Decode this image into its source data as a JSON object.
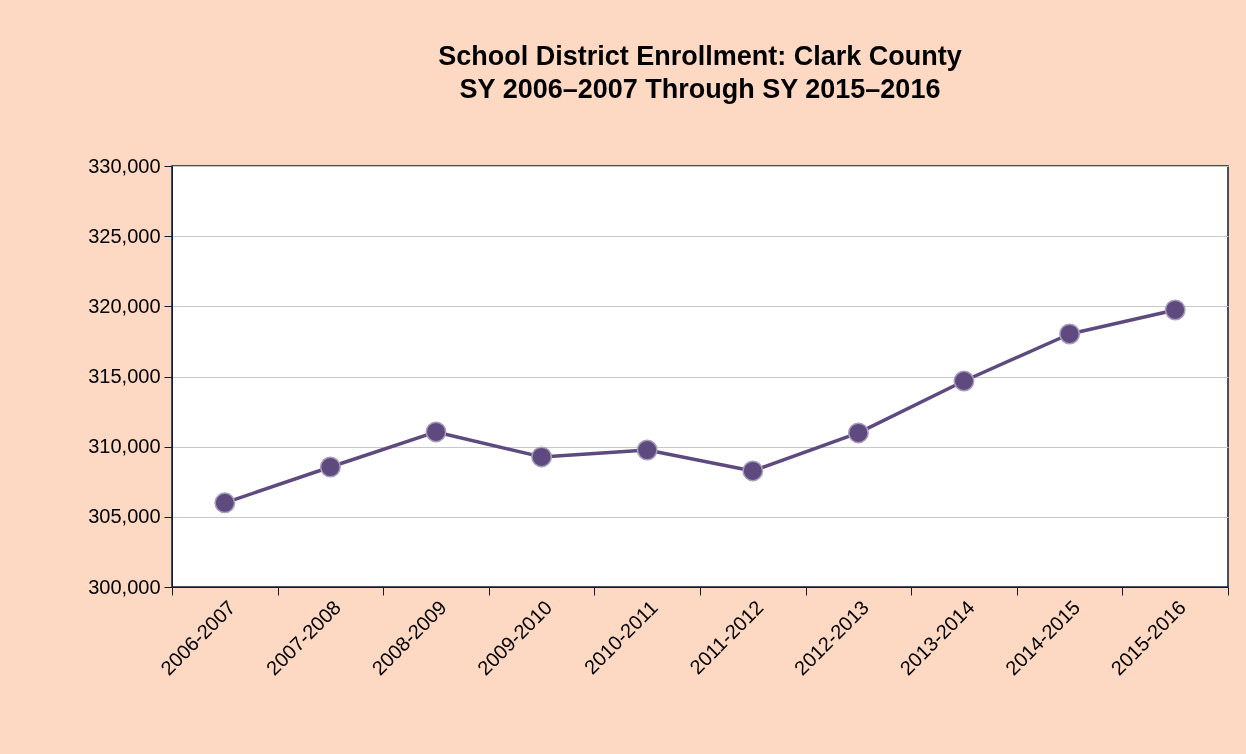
{
  "chart_data": {
    "type": "line",
    "title": "School District Enrollment: Clark County",
    "subtitle": "SY 2006–2007 Through SY 2015–2016",
    "categories": [
      "2006-2007",
      "2007-2008",
      "2008-2009",
      "2009-2010",
      "2010-2011",
      "2011-2012",
      "2012-2013",
      "2013-2014",
      "2014-2015",
      "2015-2016"
    ],
    "series": [
      {
        "color": "#5e4a7e",
        "values": [
          306000,
          308550,
          311050,
          309270,
          309760,
          308270,
          310980,
          314680,
          318030,
          319740
        ]
      }
    ],
    "ylim": [
      300000,
      330000
    ],
    "yticks": [
      {
        "value": 300000,
        "label": "300,000"
      },
      {
        "value": 305000,
        "label": "305,000"
      },
      {
        "value": 310000,
        "label": "310,000"
      },
      {
        "value": 315000,
        "label": "315,000"
      },
      {
        "value": 320000,
        "label": "320,000"
      },
      {
        "value": 325000,
        "label": "325,000"
      },
      {
        "value": 330000,
        "label": "330,000"
      }
    ],
    "grid": "y",
    "marker": "circle",
    "line_style": "solid",
    "legend": false
  }
}
